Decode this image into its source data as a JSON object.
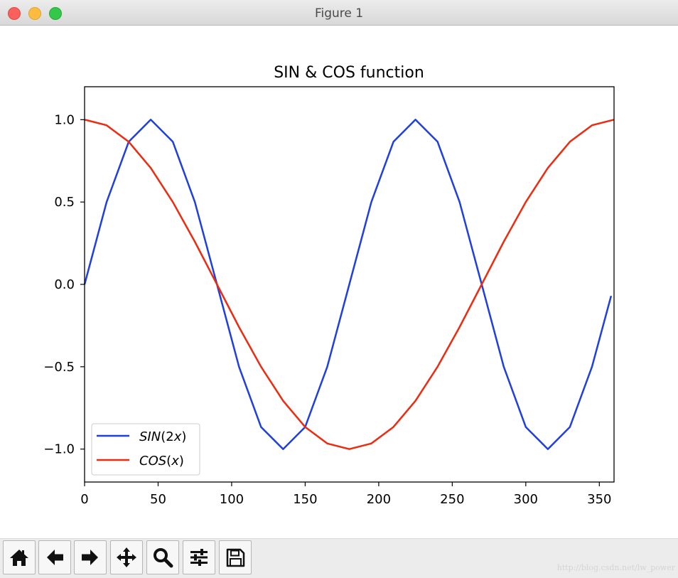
{
  "window": {
    "title": "Figure 1"
  },
  "toolbar": {
    "buttons": [
      {
        "icon": "home-icon"
      },
      {
        "icon": "back-arrow-icon"
      },
      {
        "icon": "forward-arrow-icon"
      },
      {
        "icon": "pan-icon"
      },
      {
        "icon": "zoom-icon"
      },
      {
        "icon": "subplots-config-icon"
      },
      {
        "icon": "save-icon"
      }
    ]
  },
  "watermark": "http://blog.csdn.net/lw_power",
  "colors": {
    "sin": "#1f3fe0",
    "cos": "#ee2a0f"
  },
  "chart_data": {
    "type": "line",
    "title": "SIN & COS function",
    "xlabel": "",
    "ylabel": "",
    "xlim": [
      0,
      360
    ],
    "ylim": [
      -1.2,
      1.2
    ],
    "xticks": [
      0,
      50,
      100,
      150,
      200,
      250,
      300,
      350
    ],
    "xtick_labels": [
      "0",
      "50",
      "100",
      "150",
      "200",
      "250",
      "300",
      "350"
    ],
    "yticks": [
      1.0,
      0.5,
      0.0,
      -0.5,
      -1.0
    ],
    "ytick_labels": [
      "1.0",
      "0.5",
      "0.0",
      "−0.5",
      "−1.0"
    ],
    "grid": false,
    "legend_position": "lower-left",
    "series": [
      {
        "legend_label": [
          "SIN",
          "(2",
          "x",
          ")"
        ],
        "x": [
          0,
          15,
          30,
          45,
          60,
          75,
          90,
          105,
          120,
          135,
          150,
          165,
          180,
          195,
          210,
          225,
          240,
          255,
          270,
          285,
          300,
          315,
          330,
          345,
          358
        ],
        "y": [
          0,
          0.5,
          0.866,
          1.0,
          0.866,
          0.5,
          0,
          -0.5,
          -0.866,
          -1.0,
          -0.866,
          -0.5,
          0,
          0.5,
          0.866,
          1.0,
          0.866,
          0.5,
          0,
          -0.5,
          -0.866,
          -1.0,
          -0.866,
          -0.5,
          -0.07
        ]
      },
      {
        "legend_label": [
          "COS",
          "(",
          "x",
          ")"
        ],
        "x": [
          0,
          15,
          30,
          45,
          60,
          75,
          90,
          105,
          120,
          135,
          150,
          165,
          180,
          195,
          210,
          225,
          240,
          255,
          270,
          285,
          300,
          315,
          330,
          345,
          360
        ],
        "y": [
          1.0,
          0.966,
          0.866,
          0.707,
          0.5,
          0.259,
          0,
          -0.259,
          -0.5,
          -0.707,
          -0.866,
          -0.966,
          -1.0,
          -0.966,
          -0.866,
          -0.707,
          -0.5,
          -0.259,
          0,
          0.259,
          0.5,
          0.707,
          0.866,
          0.966,
          1.0
        ]
      }
    ]
  }
}
